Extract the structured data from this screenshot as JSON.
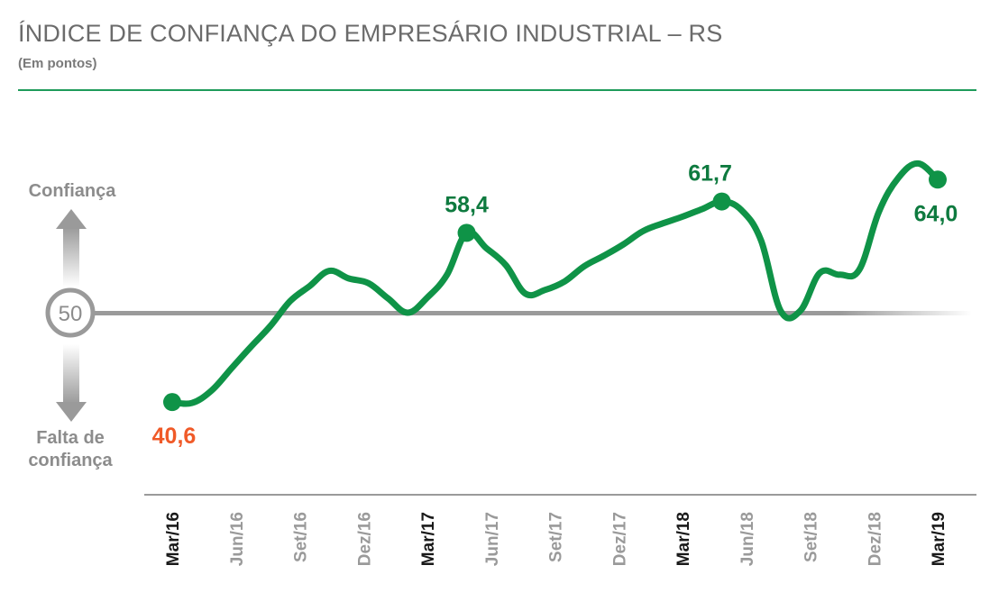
{
  "header": {
    "title": "ÍNDICE DE CONFIANÇA DO EMPRESÁRIO INDUSTRIAL – RS",
    "subtitle": "(Em pontos)"
  },
  "scale": {
    "top_label": "Confiança",
    "bottom_label_line1": "Falta de",
    "bottom_label_line2": "confiança",
    "reference_label": "50"
  },
  "colors": {
    "line": "#0f9347",
    "low_label": "#f05a28",
    "high_label": "#0e7a3f",
    "reference": "#9a9a9a",
    "rule": "#1e9b5a",
    "tick_major": "#1a1a1a",
    "tick_minor": "#9a9a9a"
  },
  "chart_data": {
    "type": "line",
    "title": "ÍNDICE DE CONFIANÇA DO EMPRESÁRIO INDUSTRIAL – RS",
    "subtitle": "(Em pontos)",
    "reference_line": 50,
    "ylim": [
      40,
      66
    ],
    "x_tick_labels": [
      "Mar/16",
      "Jun/16",
      "Set/16",
      "Dez/16",
      "Mar/17",
      "Jun/17",
      "Set/17",
      "Dez/17",
      "Mar/18",
      "Jun/18",
      "Set/18",
      "Dez/18",
      "Mar/19"
    ],
    "major_ticks": [
      "Mar/16",
      "Mar/17",
      "Mar/18",
      "Mar/19"
    ],
    "series": [
      {
        "values": [
          40.6,
          40.5,
          41.8,
          44.1,
          46.4,
          48.6,
          51.2,
          52.8,
          54.4,
          53.6,
          53.1,
          51.5,
          50.0,
          51.6,
          54.0,
          58.4,
          56.8,
          55.0,
          52.0,
          52.4,
          53.3,
          54.9,
          56.0,
          57.2,
          58.6,
          59.4,
          60.1,
          60.9,
          61.7,
          60.8,
          57.6,
          50.2,
          50.2,
          54.2,
          54.0,
          54.5,
          60.6,
          64.2,
          65.7,
          64.0
        ],
        "labeled_points": [
          {
            "index": 0,
            "label": "40,6"
          },
          {
            "index": 15,
            "label": "58,4"
          },
          {
            "index": 28,
            "label": "61,7"
          },
          {
            "index": 39,
            "label": "64,0"
          }
        ]
      }
    ]
  }
}
